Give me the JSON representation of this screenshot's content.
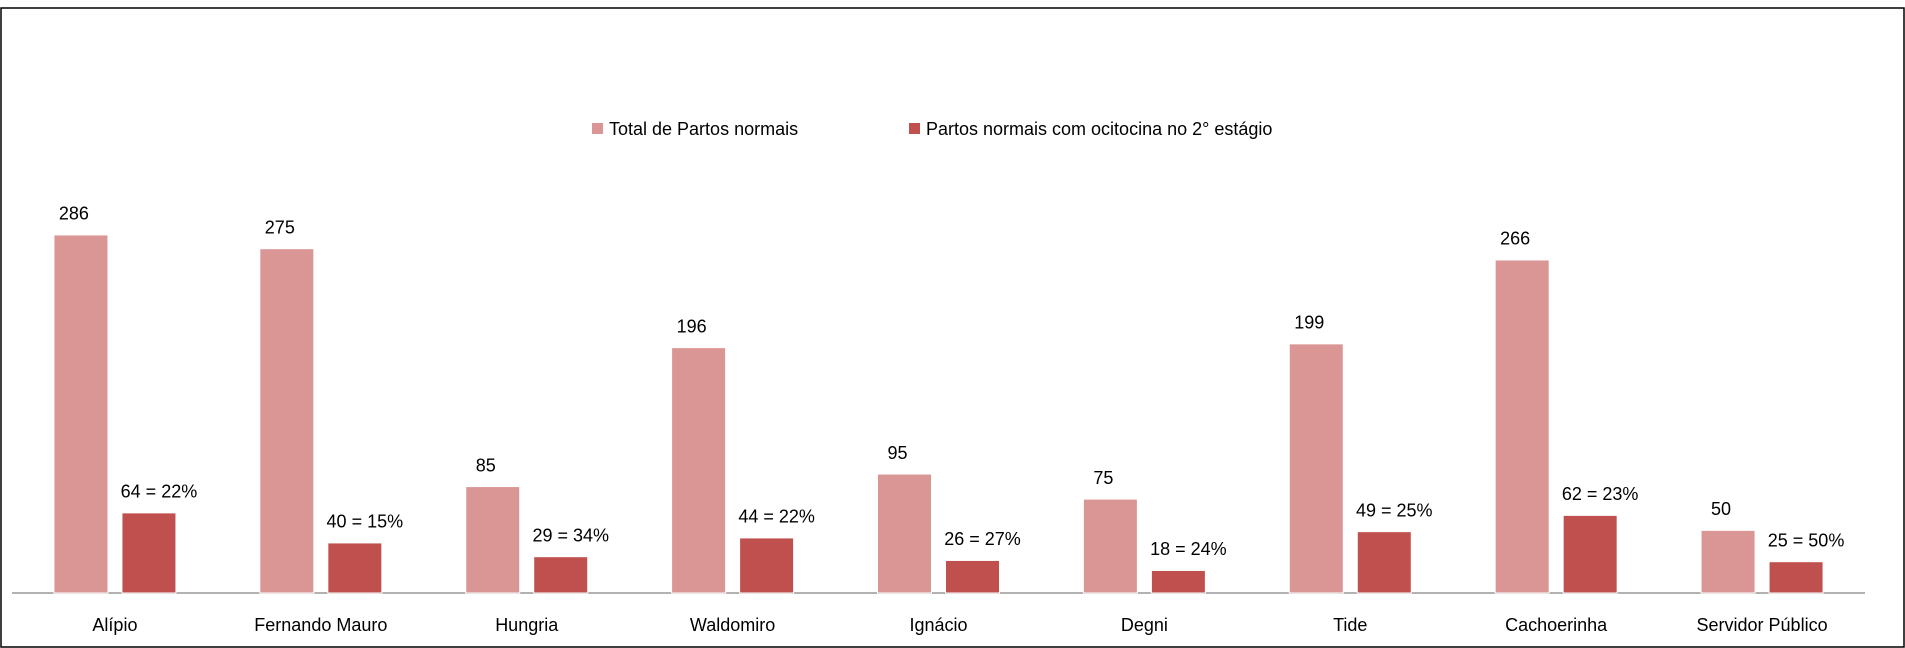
{
  "chart_data": {
    "type": "bar",
    "categories": [
      "Alípio",
      "Fernando Mauro",
      "Hungria",
      "Waldomiro",
      "Ignácio",
      "Degni",
      "Tide",
      "Cachoerinha",
      "Servidor Público"
    ],
    "series": [
      {
        "name": "Total de Partos normais",
        "color": "#d99694",
        "values": [
          286,
          275,
          85,
          196,
          95,
          75,
          199,
          266,
          50
        ]
      },
      {
        "name": "Partos normais com ocitocina no 2° estágio",
        "color": "#c0504d",
        "values": [
          64,
          40,
          29,
          44,
          26,
          18,
          49,
          62,
          25
        ],
        "value_labels": [
          "64 = 22%",
          "40 = 15%",
          "29 = 34%",
          "44 = 22%",
          "26 = 27%",
          "18 = 24%",
          "49 = 25%",
          "62 = 23%",
          "25 = 50%"
        ]
      }
    ],
    "legend": "top"
  }
}
